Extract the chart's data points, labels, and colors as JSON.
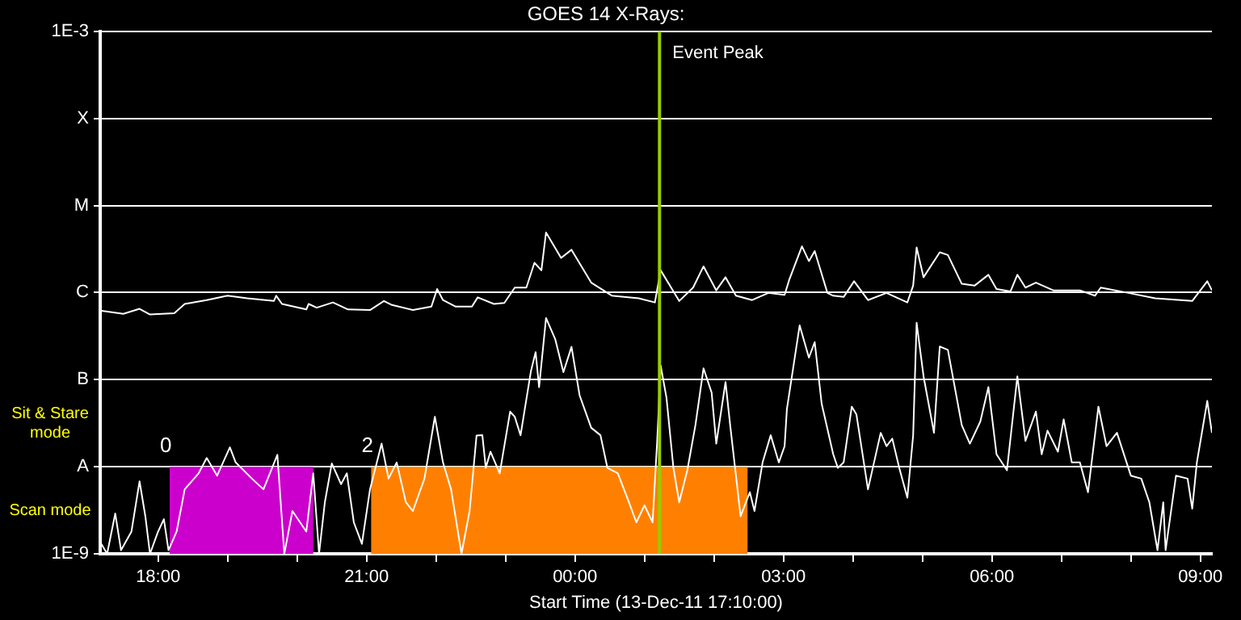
{
  "chart_data": {
    "type": "line",
    "title": "GOES 14 X-Rays:",
    "xlabel": "Start Time (13-Dec-11 17:10:00)",
    "log": "y",
    "grid": "y",
    "legend": false,
    "marker": "none",
    "line_style": "solid",
    "xlim": [
      "--12-13T17:10",
      "--12-14T09:10"
    ],
    "xticks": [
      {
        "value": "--12-13T18:00",
        "label": "18:00"
      },
      {
        "value": "--12-13T19:00",
        "label": null
      },
      {
        "value": "--12-13T20:00",
        "label": null
      },
      {
        "value": "--12-13T21:00",
        "label": "21:00"
      },
      {
        "value": "--12-13T22:00",
        "label": null
      },
      {
        "value": "--12-13T23:00",
        "label": null
      },
      {
        "value": "--12-14T00:00",
        "label": "00:00"
      },
      {
        "value": "--12-14T01:00",
        "label": null
      },
      {
        "value": "--12-14T02:00",
        "label": null
      },
      {
        "value": "--12-14T03:00",
        "label": "03:00"
      },
      {
        "value": "--12-14T04:00",
        "label": null
      },
      {
        "value": "--12-14T05:00",
        "label": null
      },
      {
        "value": "--12-14T06:00",
        "label": "06:00"
      },
      {
        "value": "--12-14T07:00",
        "label": null
      },
      {
        "value": "--12-14T08:00",
        "label": null
      },
      {
        "value": "--12-14T09:00",
        "label": "09:00"
      }
    ],
    "ylim": [
      1e-09,
      0.001
    ],
    "yticks": [
      {
        "value": 1e-09,
        "label": "1E-9"
      },
      {
        "value": 1e-08,
        "label": "A"
      },
      {
        "value": 1e-07,
        "label": "B"
      },
      {
        "value": 1e-06,
        "label": "C"
      },
      {
        "value": 1e-05,
        "label": "M"
      },
      {
        "value": 0.0001,
        "label": "X"
      },
      {
        "value": 0.001,
        "label": "1E-3"
      }
    ],
    "series": [
      {
        "color": "#ffffff",
        "x": [
          "--12-13T17:10",
          "--12-13T17:30",
          "--12-13T17:44",
          "--12-13T17:53",
          "--12-13T18:14",
          "--12-13T18:23",
          "--12-13T18:42",
          "--12-13T19:00",
          "--12-13T19:17",
          "--12-13T19:40",
          "--12-13T19:42",
          "--12-13T19:47",
          "--12-13T20:08",
          "--12-13T20:10",
          "--12-13T20:17",
          "--12-13T20:31",
          "--12-13T20:44",
          "--12-13T21:03",
          "--12-13T21:15",
          "--12-13T21:22",
          "--12-13T21:40",
          "--12-13T21:56",
          "--12-13T22:01",
          "--12-13T22:06",
          "--12-13T22:17",
          "--12-13T22:31",
          "--12-13T22:36",
          "--12-13T22:50",
          "--12-13T22:59",
          "--12-13T23:08",
          "--12-13T23:18",
          "--12-13T23:25",
          "--12-13T23:31",
          "--12-13T23:35",
          "--12-13T23:48",
          "--12-13T23:57",
          "--12-14T00:14",
          "--12-14T00:32",
          "--12-14T00:55",
          "--12-14T01:09",
          "--12-14T01:14",
          "--12-14T01:30",
          "--12-14T01:42",
          "--12-14T01:51",
          "--12-14T02:02",
          "--12-14T02:10",
          "--12-14T02:19",
          "--12-14T02:33",
          "--12-14T02:47",
          "--12-14T03:01",
          "--12-14T03:05",
          "--12-14T03:16",
          "--12-14T03:22",
          "--12-14T03:27",
          "--12-14T03:38",
          "--12-14T03:43",
          "--12-14T03:52",
          "--12-14T04:01",
          "--12-14T04:13",
          "--12-14T04:29",
          "--12-14T04:47",
          "--12-14T04:52",
          "--12-14T04:55",
          "--12-14T05:01",
          "--12-14T05:15",
          "--12-14T05:22",
          "--12-14T05:34",
          "--12-14T05:45",
          "--12-14T05:57",
          "--12-14T06:04",
          "--12-14T06:16",
          "--12-14T06:22",
          "--12-14T06:29",
          "--12-14T06:38",
          "--12-14T06:53",
          "--12-14T07:16",
          "--12-14T07:29",
          "--12-14T07:34",
          "--12-14T07:58",
          "--12-14T08:21",
          "--12-14T08:53",
          "--12-14T09:06",
          "--12-14T09:10"
        ],
        "values": [
          6.2e-07,
          5.7e-07,
          6.5e-07,
          5.6e-07,
          5.8e-07,
          7.4e-07,
          8.2e-07,
          9.2e-07,
          8.6e-07,
          8e-07,
          9.2e-07,
          7.4e-07,
          6.4e-07,
          7.4e-07,
          6.7e-07,
          7.7e-07,
          6.4e-07,
          6.3e-07,
          8e-07,
          7.2e-07,
          6.3e-07,
          6.9e-07,
          1.1e-06,
          8.2e-07,
          6.9e-07,
          6.9e-07,
          8.8e-07,
          7.4e-07,
          7.6e-07,
          1.14e-06,
          1.14e-06,
          2.2e-06,
          1.8e-06,
          4.9e-06,
          2.5e-06,
          3.1e-06,
          1.3e-06,
          9.2e-07,
          8.6e-07,
          7.7e-07,
          1.8e-06,
          8e-07,
          1.14e-06,
          2e-06,
          1.06e-06,
          1.5e-06,
          9.2e-07,
          8.2e-07,
          9.9e-07,
          9.4e-07,
          1.4e-06,
          3.4e-06,
          2.3e-06,
          3e-06,
          9.9e-07,
          9.2e-07,
          8.9e-07,
          1.35e-06,
          8.2e-07,
          9.9e-07,
          7.7e-07,
          1.2e-06,
          3.3e-06,
          1.5e-06,
          2.9e-06,
          2.7e-06,
          1.26e-06,
          1.2e-06,
          1.6e-06,
          1.1e-06,
          1.03e-06,
          1.6e-06,
          1.14e-06,
          1.3e-06,
          1.06e-06,
          1.06e-06,
          9.2e-07,
          1.14e-06,
          9.9e-07,
          8.6e-07,
          8e-07,
          1.35e-06,
          1.06e-06
        ]
      },
      {
        "color": "#ffffff",
        "x": [
          "--12-13T17:11",
          "--12-13T17:16",
          "--12-13T17:23",
          "--12-13T17:28",
          "--12-13T17:37",
          "--12-13T17:44",
          "--12-13T17:49",
          "--12-13T17:53",
          "--12-13T18:00",
          "--12-13T18:05",
          "--12-13T18:09",
          "--12-13T18:16",
          "--12-13T18:23",
          "--12-13T18:35",
          "--12-13T18:42",
          "--12-13T18:51",
          "--12-13T19:02",
          "--12-13T19:07",
          "--12-13T19:21",
          "--12-13T19:31",
          "--12-13T19:43",
          "--12-13T19:49",
          "--12-13T19:56",
          "--12-13T20:08",
          "--12-13T20:14",
          "--12-13T20:19",
          "--12-13T20:24",
          "--12-13T20:30",
          "--12-13T20:38",
          "--12-13T20:43",
          "--12-13T20:49",
          "--12-13T20:56",
          "--12-13T21:03",
          "--12-13T21:13",
          "--12-13T21:19",
          "--12-13T21:26",
          "--12-13T21:34",
          "--12-13T21:40",
          "--12-13T21:50",
          "--12-13T21:59",
          "--12-13T22:06",
          "--12-13T22:13",
          "--12-13T22:22",
          "--12-13T22:29",
          "--12-13T22:35",
          "--12-13T22:40",
          "--12-13T22:43",
          "--12-13T22:47",
          "--12-13T22:55",
          "--12-13T23:04",
          "--12-13T23:08",
          "--12-13T23:13",
          "--12-13T23:22",
          "--12-13T23:26",
          "--12-13T23:29",
          "--12-13T23:35",
          "--12-13T23:43",
          "--12-13T23:50",
          "--12-13T23:57",
          "--12-14T00:04",
          "--12-14T00:14",
          "--12-14T00:22",
          "--12-14T00:28",
          "--12-14T00:37",
          "--12-14T00:46",
          "--12-14T00:53",
          "--12-14T01:00",
          "--12-14T01:07",
          "--12-14T01:11",
          "--12-14T01:14",
          "--12-14T01:19",
          "--12-14T01:25",
          "--12-14T01:30",
          "--12-14T01:37",
          "--12-14T01:44",
          "--12-14T01:51",
          "--12-14T01:58",
          "--12-14T02:02",
          "--12-14T02:10",
          "--12-14T02:14",
          "--12-14T02:23",
          "--12-14T02:31",
          "--12-14T02:35",
          "--12-14T02:42",
          "--12-14T02:49",
          "--12-14T02:56",
          "--12-14T03:01",
          "--12-14T03:03",
          "--12-14T03:14",
          "--12-14T03:22",
          "--12-14T03:27",
          "--12-14T03:33",
          "--12-14T03:43",
          "--12-14T03:47",
          "--12-14T03:52",
          "--12-14T03:59",
          "--12-14T04:03",
          "--12-14T04:13",
          "--12-14T04:24",
          "--12-14T04:29",
          "--12-14T04:34",
          "--12-14T04:40",
          "--12-14T04:47",
          "--12-14T04:52",
          "--12-14T04:55",
          "--12-14T05:01",
          "--12-14T05:10",
          "--12-14T05:15",
          "--12-14T05:22",
          "--12-14T05:34",
          "--12-14T05:41",
          "--12-14T05:50",
          "--12-14T05:57",
          "--12-14T06:04",
          "--12-14T06:13",
          "--12-14T06:22",
          "--12-14T06:29",
          "--12-14T06:38",
          "--12-14T06:43",
          "--12-14T06:48",
          "--12-14T06:57",
          "--12-14T07:02",
          "--12-14T07:09",
          "--12-14T07:16",
          "--12-14T07:23",
          "--12-14T07:32",
          "--12-14T07:39",
          "--12-14T07:48",
          "--12-14T08:00",
          "--12-14T08:09",
          "--12-14T08:16",
          "--12-14T08:23",
          "--12-14T08:28",
          "--12-14T08:30",
          "--12-14T08:39",
          "--12-14T08:49",
          "--12-14T08:53",
          "--12-14T08:57",
          "--12-14T09:06",
          "--12-14T09:10"
        ],
        "values": [
          1.3e-09,
          1e-09,
          2.9e-09,
          1.1e-09,
          1.8e-09,
          6.8e-09,
          2.7e-09,
          1e-09,
          1.8e-09,
          2.5e-09,
          1.1e-09,
          1.8e-09,
          5.5e-09,
          8.4e-09,
          1.26e-08,
          7.9e-09,
          1.67e-08,
          1.12e-08,
          7.3e-09,
          5.5e-09,
          1.37e-08,
          1e-09,
          3.1e-09,
          1.8e-09,
          8.4e-09,
          1e-09,
          3.9e-09,
          1.09e-08,
          6.3e-09,
          8.4e-09,
          2.3e-09,
          1.3e-09,
          5.5e-09,
          1.84e-08,
          7.3e-09,
          1.12e-08,
          3.9e-09,
          3.1e-09,
          7.3e-09,
          3.75e-08,
          1.12e-08,
          5.5e-09,
          1e-09,
          3.1e-09,
          2.28e-08,
          2.3e-08,
          9.7e-09,
          1.49e-08,
          8.4e-09,
          4.3e-08,
          3.75e-08,
          2.3e-08,
          1.26e-07,
          2.07e-07,
          8.2e-08,
          5.1e-07,
          2.9e-07,
          1.22e-07,
          2.38e-07,
          6.6e-08,
          2.8e-08,
          2.3e-08,
          9.7e-09,
          8.4e-09,
          4.1e-09,
          2.3e-09,
          3.6e-09,
          2.3e-09,
          1.98e-08,
          1.45e-07,
          6.2e-08,
          9.7e-09,
          3.9e-09,
          9.1e-09,
          3e-08,
          1.35e-07,
          7.1e-08,
          1.84e-08,
          9.4e-08,
          3e-08,
          2.7e-09,
          5.1e-09,
          3.1e-09,
          1.12e-08,
          2.3e-08,
          1.12e-08,
          1.72e-08,
          4.6e-08,
          4.2e-07,
          1.79e-07,
          2.7e-07,
          5.3e-08,
          1.39e-08,
          9.7e-09,
          1.12e-08,
          4.9e-08,
          4e-08,
          5.5e-09,
          2.45e-08,
          1.72e-08,
          2.1e-08,
          9.7e-09,
          4.4e-09,
          2.28e-08,
          4.5e-07,
          1.09e-07,
          2.45e-08,
          2.4e-07,
          2.2e-07,
          3e-08,
          1.84e-08,
          3.3e-08,
          8.2e-08,
          1.39e-08,
          9.1e-09,
          1.09e-07,
          1.98e-08,
          4.3e-08,
          1.39e-08,
          2.6e-08,
          1.49e-08,
          3.5e-08,
          1.12e-08,
          1.12e-08,
          5.1e-09,
          4.9e-08,
          1.72e-08,
          2.45e-08,
          7.9e-09,
          7.3e-09,
          3.9e-09,
          1.1e-09,
          3.9e-09,
          1.1e-09,
          7.9e-09,
          7.3e-09,
          3.3e-09,
          1.12e-08,
          5.7e-08,
          2.45e-08
        ]
      }
    ],
    "ref_lines": [
      {
        "axis": "x",
        "value": "--12-14T01:13",
        "label": "Event Peak",
        "color": "#99cc00"
      }
    ],
    "bands": [
      {
        "axis": "x",
        "from": "--12-13T18:10",
        "to": "--12-13T20:14",
        "label": "0",
        "color": "#cc00cc"
      },
      {
        "axis": "x",
        "from": "--12-13T21:04",
        "to": "--12-14T02:29",
        "label": "2",
        "color": "#ff8000"
      }
    ],
    "annotations": [
      "Sit & Stare mode",
      "Scan mode"
    ]
  }
}
